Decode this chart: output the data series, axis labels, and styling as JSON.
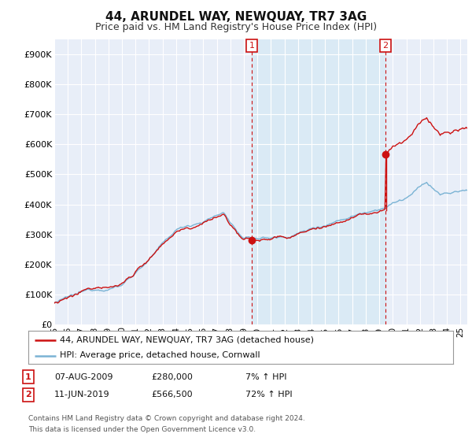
{
  "title": "44, ARUNDEL WAY, NEWQUAY, TR7 3AG",
  "subtitle": "Price paid vs. HM Land Registry's House Price Index (HPI)",
  "title_fontsize": 11,
  "subtitle_fontsize": 9,
  "ylim": [
    0,
    950000
  ],
  "yticks": [
    0,
    100000,
    200000,
    300000,
    400000,
    500000,
    600000,
    700000,
    800000,
    900000
  ],
  "ytick_labels": [
    "£0",
    "£100K",
    "£200K",
    "£300K",
    "£400K",
    "£500K",
    "£600K",
    "£700K",
    "£800K",
    "£900K"
  ],
  "xlim_start": 1995.0,
  "xlim_end": 2025.5,
  "xtick_years": [
    1995,
    1996,
    1997,
    1998,
    1999,
    2000,
    2001,
    2002,
    2003,
    2004,
    2005,
    2006,
    2007,
    2008,
    2009,
    2010,
    2011,
    2012,
    2013,
    2014,
    2015,
    2016,
    2017,
    2018,
    2019,
    2020,
    2021,
    2022,
    2023,
    2024,
    2025
  ],
  "xtick_labels": [
    "95",
    "96",
    "97",
    "98",
    "99",
    "00",
    "01",
    "02",
    "03",
    "04",
    "05",
    "06",
    "07",
    "08",
    "09",
    "10",
    "11",
    "12",
    "13",
    "14",
    "15",
    "16",
    "17",
    "18",
    "19",
    "20",
    "21",
    "22",
    "23",
    "24",
    "25"
  ],
  "hpi_color": "#7ab3d4",
  "price_color": "#cc1111",
  "transaction1_year": 2009.6,
  "transaction1_price": 280000,
  "transaction2_year": 2019.46,
  "transaction2_price": 566500,
  "shade_color": "#daeaf5",
  "legend_label_red": "44, ARUNDEL WAY, NEWQUAY, TR7 3AG (detached house)",
  "legend_label_blue": "HPI: Average price, detached house, Cornwall",
  "row1_date": "07-AUG-2009",
  "row1_price": "£280,000",
  "row1_hpi": "7% ↑ HPI",
  "row2_date": "11-JUN-2019",
  "row2_price": "£566,500",
  "row2_hpi": "72% ↑ HPI",
  "footer1": "Contains HM Land Registry data © Crown copyright and database right 2024.",
  "footer2": "This data is licensed under the Open Government Licence v3.0.",
  "bg_color": "#ffffff",
  "plot_bg_color": "#e8eef8",
  "grid_color": "#ffffff"
}
